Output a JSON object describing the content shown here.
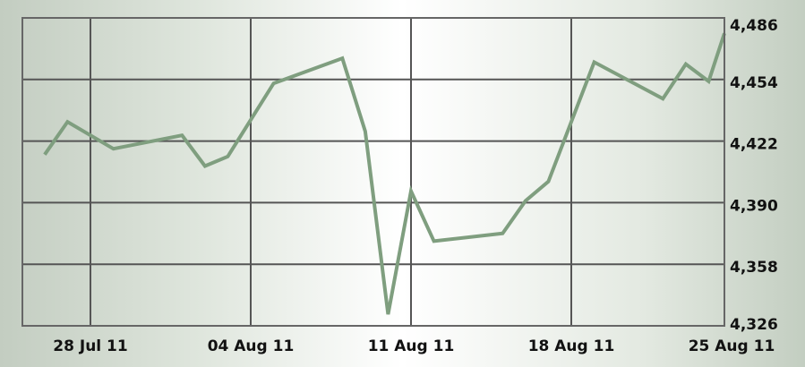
{
  "chart_data": {
    "type": "line",
    "title": "",
    "xlabel": "",
    "ylabel": "",
    "ylim": [
      4326,
      4486
    ],
    "y_ticks": [
      "4,486",
      "4,454",
      "4,422",
      "4,390",
      "4,358",
      "4,326"
    ],
    "y_tick_values": [
      4486,
      4454,
      4422,
      4390,
      4358,
      4326
    ],
    "y_axis_side": "right",
    "x_ticks": [
      "28 Jul 11",
      "04 Aug 11",
      "11 Aug 11",
      "18 Aug 11",
      "25 Aug 11"
    ],
    "x_tick_dates": [
      "2011-07-28",
      "2011-08-04",
      "2011-08-11",
      "2011-08-18",
      "2011-08-25"
    ],
    "xlim": [
      "2011-07-25",
      "2011-08-25"
    ],
    "grid": true,
    "line_color": "#7f9e7f",
    "series": [
      {
        "x": [
          "2011-07-26",
          "2011-07-27",
          "2011-07-29",
          "2011-08-01",
          "2011-08-02",
          "2011-08-03",
          "2011-08-05",
          "2011-08-08",
          "2011-08-09",
          "2011-08-10",
          "2011-08-11",
          "2011-08-12",
          "2011-08-15",
          "2011-08-16",
          "2011-08-17",
          "2011-08-19",
          "2011-08-22",
          "2011-08-23",
          "2011-08-24",
          "2011-08-25"
        ],
        "values": [
          4415,
          4432,
          4418,
          4425,
          4409,
          4414,
          4452,
          4465,
          4427,
          4332,
          4396,
          4370,
          4374,
          4391,
          4401,
          4463,
          4444,
          4462,
          4453,
          4478
        ]
      }
    ]
  }
}
